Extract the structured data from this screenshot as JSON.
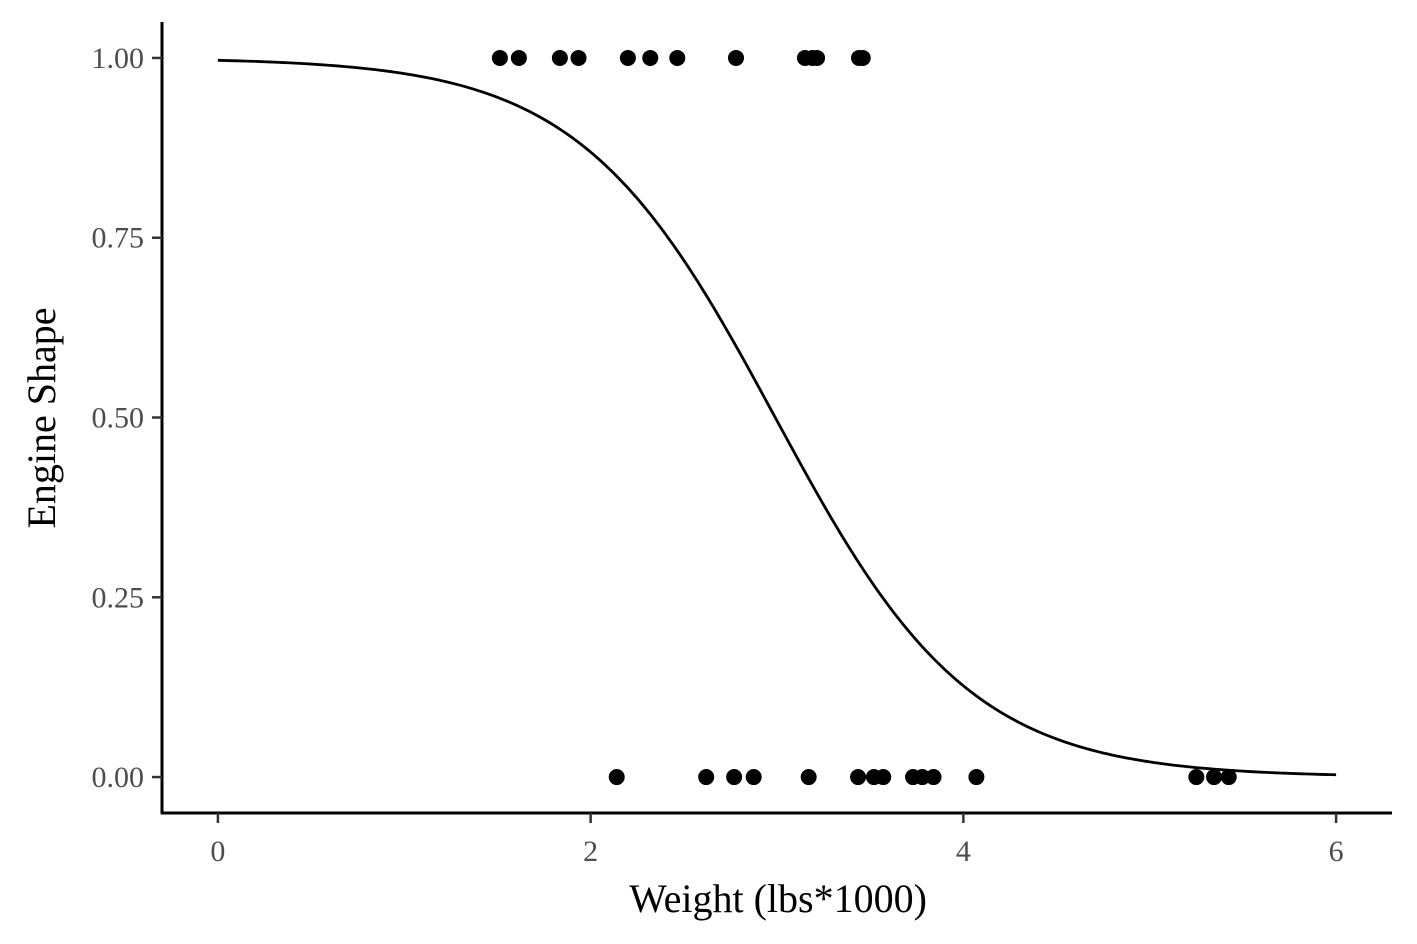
{
  "chart_data": {
    "type": "scatter",
    "xlabel": "Weight (lbs*1000)",
    "ylabel": "Engine Shape",
    "xlim": [
      -0.3,
      6.3
    ],
    "ylim": [
      -0.05,
      1.05
    ],
    "x_ticks": [
      0,
      2,
      4,
      6
    ],
    "x_tick_labels": [
      "0",
      "2",
      "4",
      "6"
    ],
    "y_ticks": [
      0,
      0.25,
      0.5,
      0.75,
      1.0
    ],
    "y_tick_labels": [
      "0.00",
      "0.25",
      "0.50",
      "0.75",
      "1.00"
    ],
    "grid": false,
    "points": [
      {
        "x": 1.513,
        "y": 1
      },
      {
        "x": 1.615,
        "y": 1
      },
      {
        "x": 1.835,
        "y": 1
      },
      {
        "x": 1.935,
        "y": 1
      },
      {
        "x": 2.2,
        "y": 1
      },
      {
        "x": 2.32,
        "y": 1
      },
      {
        "x": 2.465,
        "y": 1
      },
      {
        "x": 2.78,
        "y": 1
      },
      {
        "x": 3.15,
        "y": 1
      },
      {
        "x": 3.19,
        "y": 1
      },
      {
        "x": 3.215,
        "y": 1
      },
      {
        "x": 3.44,
        "y": 1
      },
      {
        "x": 3.46,
        "y": 1
      },
      {
        "x": 2.14,
        "y": 0
      },
      {
        "x": 2.62,
        "y": 0
      },
      {
        "x": 2.77,
        "y": 0
      },
      {
        "x": 2.875,
        "y": 0
      },
      {
        "x": 3.17,
        "y": 0
      },
      {
        "x": 3.435,
        "y": 0
      },
      {
        "x": 3.52,
        "y": 0
      },
      {
        "x": 3.57,
        "y": 0
      },
      {
        "x": 3.73,
        "y": 0
      },
      {
        "x": 3.78,
        "y": 0
      },
      {
        "x": 3.84,
        "y": 0
      },
      {
        "x": 4.07,
        "y": 0
      },
      {
        "x": 5.25,
        "y": 0
      },
      {
        "x": 5.345,
        "y": 0
      },
      {
        "x": 5.424,
        "y": 0
      }
    ],
    "fit": {
      "type": "logistic",
      "x_range": [
        0,
        6
      ],
      "intercept": 5.715,
      "slope": -1.911
    }
  }
}
